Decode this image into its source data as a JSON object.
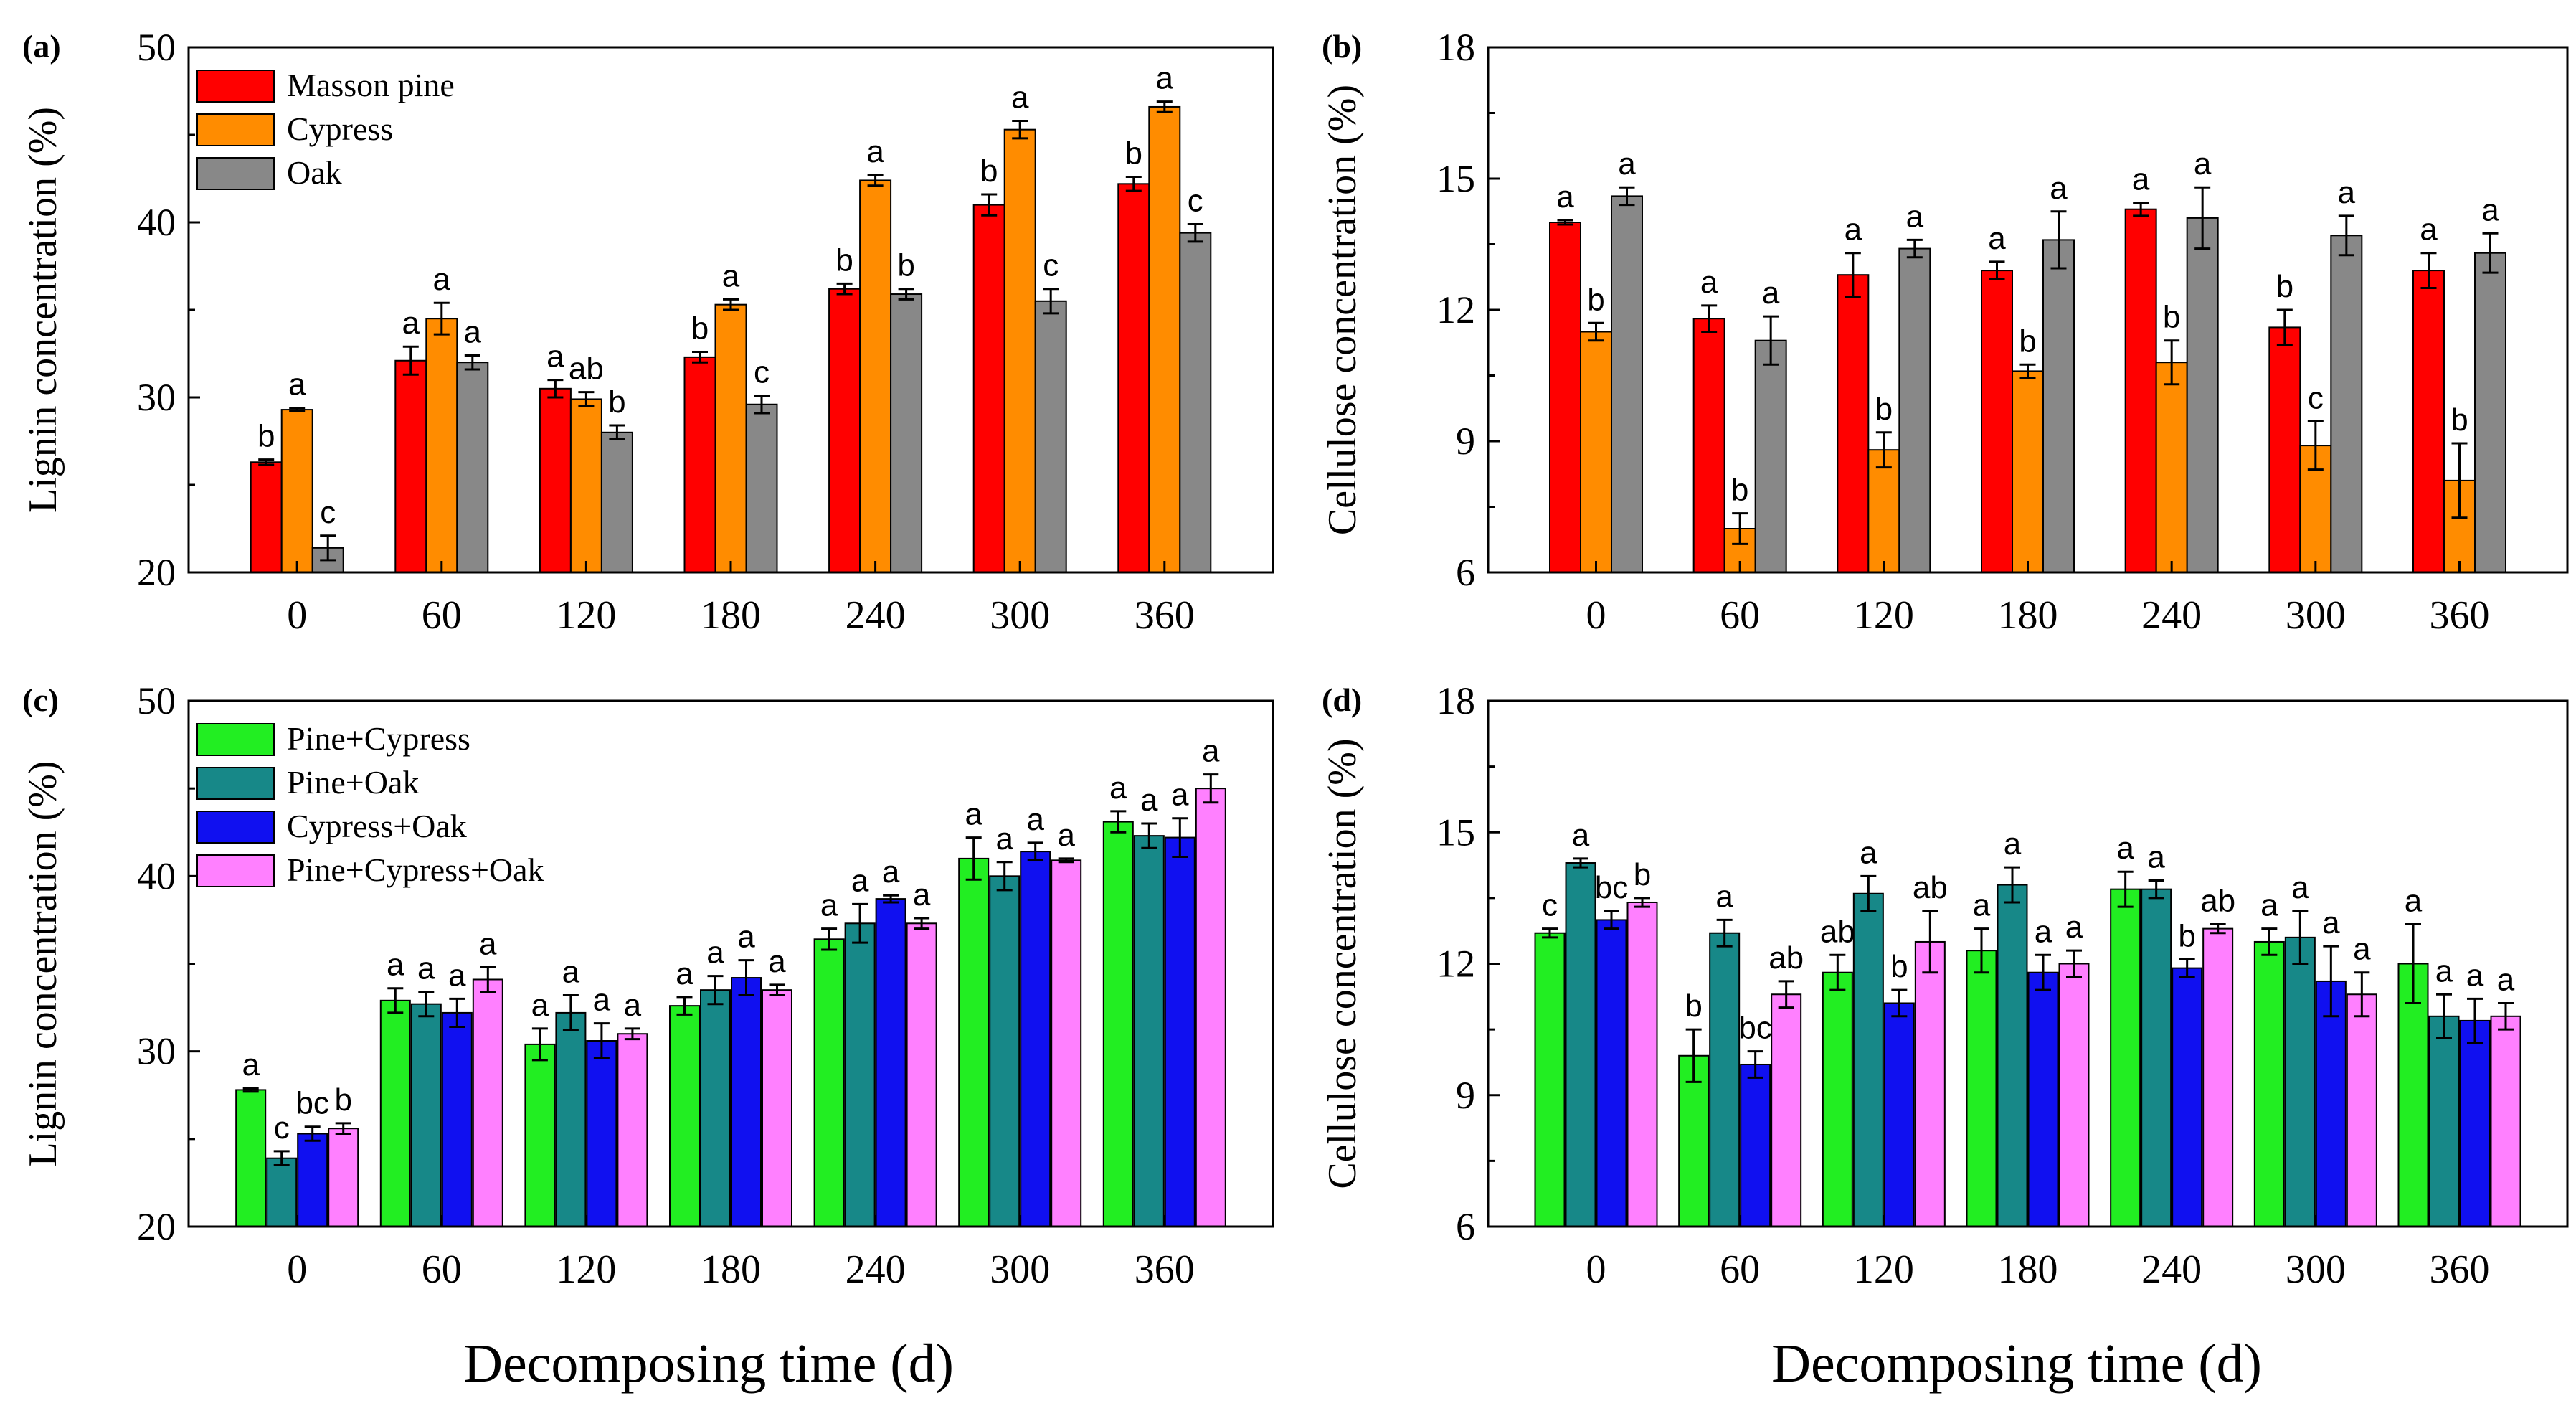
{
  "figure": {
    "shared_xlabel": "Decomposing time (d)",
    "colors": {
      "masson_pine": "#ff0000",
      "cypress": "#ff8c00",
      "oak": "#888888",
      "pine_cypress": "#22ee22",
      "pine_oak": "#178888",
      "cypress_oak": "#1010f0",
      "pine_cypress_oak": "#ff80ff"
    }
  },
  "chart_data": [
    {
      "panel": "(a)",
      "type": "bar",
      "ylabel": "Lignin concentration (%)",
      "xlabel": "Decomposing time (d)",
      "categories": [
        "0",
        "60",
        "120",
        "180",
        "240",
        "300",
        "360"
      ],
      "ylim": [
        20,
        50
      ],
      "yticks": [
        "20",
        "30",
        "40",
        "50"
      ],
      "legend_position": "top-left",
      "series": [
        {
          "name": "Masson pine",
          "color": "#ff0000",
          "values": [
            26.3,
            32.1,
            30.5,
            32.3,
            36.2,
            41.0,
            42.2
          ],
          "errors": [
            0.15,
            0.8,
            0.5,
            0.3,
            0.3,
            0.6,
            0.4
          ],
          "letters": [
            "b",
            "a",
            "a",
            "b",
            "b",
            "b",
            "b"
          ]
        },
        {
          "name": "Cypress",
          "color": "#ff8c00",
          "values": [
            29.3,
            34.5,
            29.9,
            35.3,
            42.4,
            45.3,
            46.6
          ],
          "errors": [
            0.1,
            0.9,
            0.4,
            0.3,
            0.3,
            0.5,
            0.3
          ],
          "letters": [
            "a",
            "a",
            "ab",
            "a",
            "a",
            "a",
            "a"
          ]
        },
        {
          "name": "Oak",
          "color": "#888888",
          "values": [
            21.4,
            32.0,
            28.0,
            29.6,
            35.9,
            35.5,
            39.4
          ],
          "errors": [
            0.7,
            0.4,
            0.4,
            0.5,
            0.3,
            0.7,
            0.5
          ],
          "letters": [
            "c",
            "a",
            "b",
            "c",
            "b",
            "c",
            "c"
          ]
        }
      ]
    },
    {
      "panel": "(b)",
      "type": "bar",
      "ylabel": "Cellulose concentration (%)",
      "xlabel": "Decomposing time (d)",
      "categories": [
        "0",
        "60",
        "120",
        "180",
        "240",
        "300",
        "360"
      ],
      "ylim": [
        6,
        18
      ],
      "yticks": [
        "6",
        "9",
        "12",
        "15",
        "18"
      ],
      "series": [
        {
          "name": "Masson pine",
          "color": "#ff0000",
          "values": [
            14.0,
            11.8,
            12.8,
            12.9,
            14.3,
            11.6,
            12.9
          ],
          "errors": [
            0.05,
            0.3,
            0.5,
            0.2,
            0.15,
            0.4,
            0.4
          ],
          "letters": [
            "a",
            "a",
            "a",
            "a",
            "a",
            "b",
            "a"
          ]
        },
        {
          "name": "Cypress",
          "color": "#ff8c00",
          "values": [
            11.5,
            7.0,
            8.8,
            10.6,
            10.8,
            8.9,
            8.1
          ],
          "errors": [
            0.2,
            0.35,
            0.4,
            0.15,
            0.5,
            0.55,
            0.85
          ],
          "letters": [
            "b",
            "b",
            "b",
            "b",
            "b",
            "c",
            "b"
          ]
        },
        {
          "name": "Oak",
          "color": "#888888",
          "values": [
            14.6,
            11.3,
            13.4,
            13.6,
            14.1,
            13.7,
            13.3
          ],
          "errors": [
            0.2,
            0.55,
            0.2,
            0.65,
            0.7,
            0.45,
            0.45
          ],
          "letters": [
            "a",
            "a",
            "a",
            "a",
            "a",
            "a",
            "a"
          ]
        }
      ]
    },
    {
      "panel": "(c)",
      "type": "bar",
      "ylabel": "Lignin concentration (%)",
      "xlabel": "Decomposing time (d)",
      "categories": [
        "0",
        "60",
        "120",
        "180",
        "240",
        "300",
        "360"
      ],
      "ylim": [
        20,
        50
      ],
      "yticks": [
        "20",
        "30",
        "40",
        "50"
      ],
      "legend_position": "top-left",
      "series": [
        {
          "name": "Pine+Cypress",
          "color": "#22ee22",
          "values": [
            27.8,
            32.9,
            30.4,
            32.6,
            36.4,
            41.0,
            43.1
          ],
          "errors": [
            0.1,
            0.7,
            0.9,
            0.5,
            0.6,
            1.2,
            0.6
          ],
          "letters": [
            "a",
            "a",
            "a",
            "a",
            "a",
            "a",
            "a"
          ]
        },
        {
          "name": "Pine+Oak",
          "color": "#178888",
          "values": [
            23.9,
            32.7,
            32.2,
            33.5,
            37.3,
            40.0,
            42.3
          ],
          "errors": [
            0.4,
            0.7,
            1.0,
            0.8,
            1.1,
            0.8,
            0.7
          ],
          "letters": [
            "c",
            "a",
            "a",
            "a",
            "a",
            "a",
            "a"
          ]
        },
        {
          "name": "Cypress+Oak",
          "color": "#1010f0",
          "values": [
            25.3,
            32.2,
            30.6,
            34.2,
            38.7,
            41.4,
            42.2
          ],
          "errors": [
            0.4,
            0.8,
            1.0,
            1.0,
            0.2,
            0.5,
            1.1
          ],
          "letters": [
            "bc",
            "a",
            "a",
            "a",
            "a",
            "a",
            "a"
          ]
        },
        {
          "name": "Pine+Cypress+Oak",
          "color": "#ff80ff",
          "values": [
            25.6,
            34.1,
            31.0,
            33.5,
            37.3,
            40.9,
            45.0
          ],
          "errors": [
            0.3,
            0.7,
            0.3,
            0.3,
            0.3,
            0.1,
            0.8
          ],
          "letters": [
            "b",
            "a",
            "a",
            "a",
            "a",
            "a",
            "a"
          ]
        }
      ]
    },
    {
      "panel": "(d)",
      "type": "bar",
      "ylabel": "Cellulose concentration (%)",
      "xlabel": "Decomposing time (d)",
      "categories": [
        "0",
        "60",
        "120",
        "180",
        "240",
        "300",
        "360"
      ],
      "ylim": [
        6,
        18
      ],
      "yticks": [
        "6",
        "9",
        "12",
        "15",
        "18"
      ],
      "series": [
        {
          "name": "Pine+Cypress",
          "color": "#22ee22",
          "values": [
            12.7,
            9.9,
            11.8,
            12.3,
            13.7,
            12.5,
            12.0
          ],
          "errors": [
            0.1,
            0.6,
            0.4,
            0.5,
            0.4,
            0.3,
            0.9
          ],
          "letters": [
            "c",
            "b",
            "ab",
            "a",
            "a",
            "a",
            "a"
          ]
        },
        {
          "name": "Pine+Oak",
          "color": "#178888",
          "values": [
            14.3,
            12.7,
            13.6,
            13.8,
            13.7,
            12.6,
            10.8
          ],
          "errors": [
            0.1,
            0.3,
            0.4,
            0.4,
            0.2,
            0.6,
            0.5
          ],
          "letters": [
            "a",
            "a",
            "a",
            "a",
            "a",
            "a",
            "a"
          ]
        },
        {
          "name": "Cypress+Oak",
          "color": "#1010f0",
          "values": [
            13.0,
            9.7,
            11.1,
            11.8,
            11.9,
            11.6,
            10.7
          ],
          "errors": [
            0.2,
            0.3,
            0.3,
            0.4,
            0.2,
            0.8,
            0.5
          ],
          "letters": [
            "bc",
            "bc",
            "b",
            "a",
            "b",
            "a",
            "a"
          ]
        },
        {
          "name": "Pine+Cypress+Oak",
          "color": "#ff80ff",
          "values": [
            13.4,
            11.3,
            12.5,
            12.0,
            12.8,
            11.3,
            10.8
          ],
          "errors": [
            0.1,
            0.3,
            0.7,
            0.3,
            0.1,
            0.5,
            0.3
          ],
          "letters": [
            "b",
            "ab",
            "ab",
            "a",
            "ab",
            "a",
            "a"
          ]
        }
      ]
    }
  ]
}
